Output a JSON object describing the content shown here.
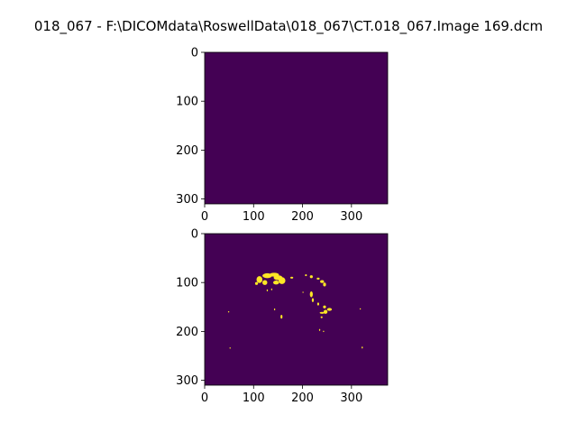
{
  "figure": {
    "title": "018_067 - F:\\DICOMdata\\RoswellData\\018_067\\CT.018_067.Image 169.dcm"
  },
  "chart_data": [
    {
      "type": "heatmap",
      "name": "top-image",
      "xlim": [
        0,
        374
      ],
      "ylim": [
        310,
        0
      ],
      "xticks": [
        0,
        100,
        200,
        300
      ],
      "yticks": [
        0,
        100,
        200,
        300
      ],
      "colormap": "viridis",
      "background_color": "#440154",
      "blobs": []
    },
    {
      "type": "heatmap",
      "name": "bottom-image",
      "xlim": [
        0,
        374
      ],
      "ylim": [
        310,
        0
      ],
      "xticks": [
        0,
        100,
        200,
        300
      ],
      "yticks": [
        0,
        100,
        200,
        300
      ],
      "colormap": "viridis",
      "background_color": "#440154",
      "foreground_color": "#fde725",
      "blobs": [
        {
          "x": 112,
          "y": 94,
          "rx": 6,
          "ry": 7
        },
        {
          "x": 128,
          "y": 86,
          "rx": 10,
          "ry": 5
        },
        {
          "x": 142,
          "y": 84,
          "rx": 10,
          "ry": 4
        },
        {
          "x": 150,
          "y": 90,
          "rx": 9,
          "ry": 5
        },
        {
          "x": 158,
          "y": 96,
          "rx": 7,
          "ry": 7
        },
        {
          "x": 146,
          "y": 100,
          "rx": 6,
          "ry": 4
        },
        {
          "x": 123,
          "y": 100,
          "rx": 5,
          "ry": 5
        },
        {
          "x": 106,
          "y": 102,
          "rx": 3,
          "ry": 3
        },
        {
          "x": 178,
          "y": 90,
          "rx": 3,
          "ry": 2
        },
        {
          "x": 207,
          "y": 85,
          "rx": 2,
          "ry": 2
        },
        {
          "x": 218,
          "y": 88,
          "rx": 3,
          "ry": 3
        },
        {
          "x": 232,
          "y": 92,
          "rx": 3,
          "ry": 2
        },
        {
          "x": 240,
          "y": 98,
          "rx": 4,
          "ry": 3
        },
        {
          "x": 245,
          "y": 104,
          "rx": 3,
          "ry": 4
        },
        {
          "x": 218,
          "y": 124,
          "rx": 3,
          "ry": 6
        },
        {
          "x": 221,
          "y": 136,
          "rx": 2,
          "ry": 4
        },
        {
          "x": 232,
          "y": 144,
          "rx": 2,
          "ry": 3
        },
        {
          "x": 245,
          "y": 150,
          "rx": 3,
          "ry": 3
        },
        {
          "x": 255,
          "y": 155,
          "rx": 5,
          "ry": 3
        },
        {
          "x": 240,
          "y": 162,
          "rx": 5,
          "ry": 2
        },
        {
          "x": 247,
          "y": 160,
          "rx": 4,
          "ry": 4
        },
        {
          "x": 239,
          "y": 171,
          "rx": 2,
          "ry": 2
        },
        {
          "x": 157,
          "y": 170,
          "rx": 2,
          "ry": 4
        },
        {
          "x": 143,
          "y": 155,
          "rx": 1,
          "ry": 2
        },
        {
          "x": 235,
          "y": 197,
          "rx": 1,
          "ry": 2
        },
        {
          "x": 243,
          "y": 200,
          "rx": 1,
          "ry": 1
        },
        {
          "x": 52,
          "y": 234,
          "rx": 1,
          "ry": 1
        },
        {
          "x": 322,
          "y": 233,
          "rx": 1,
          "ry": 2
        },
        {
          "x": 49,
          "y": 160,
          "rx": 1,
          "ry": 1
        },
        {
          "x": 318,
          "y": 154,
          "rx": 1,
          "ry": 1
        },
        {
          "x": 128,
          "y": 116,
          "rx": 1,
          "ry": 2
        },
        {
          "x": 137,
          "y": 114,
          "rx": 1,
          "ry": 2
        },
        {
          "x": 201,
          "y": 120,
          "rx": 1,
          "ry": 1
        }
      ]
    }
  ]
}
